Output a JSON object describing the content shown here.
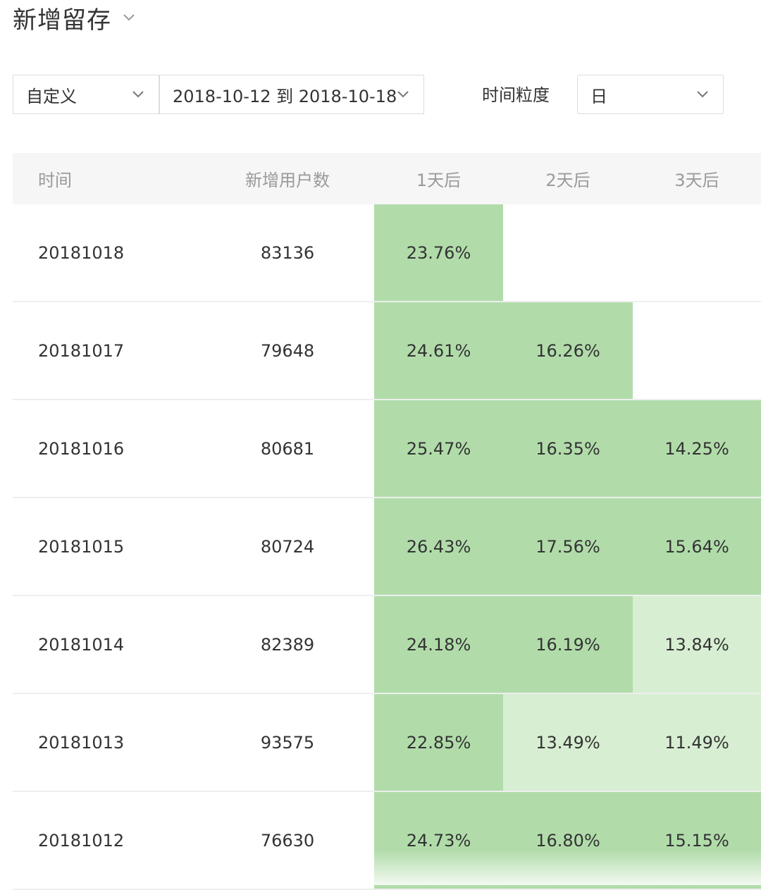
{
  "page": {
    "title": "新增留存"
  },
  "filters": {
    "range_mode": "自定义",
    "date_range": "2018-10-12 到 2018-10-18",
    "granularity_label": "时间粒度",
    "granularity_value": "日"
  },
  "colors": {
    "strong": "#b1dcaa",
    "light": "#d7eed2",
    "empty": "#ffffff"
  },
  "table": {
    "headers": {
      "time": "时间",
      "new_users": "新增用户数",
      "d1": "1天后",
      "d2": "2天后",
      "d3": "3天后"
    },
    "rows": [
      {
        "date": "20181018",
        "users": "83136",
        "d1": "23.76%",
        "d2": "",
        "d3": "",
        "shade": [
          "strong",
          "empty",
          "empty"
        ]
      },
      {
        "date": "20181017",
        "users": "79648",
        "d1": "24.61%",
        "d2": "16.26%",
        "d3": "",
        "shade": [
          "strong",
          "strong",
          "empty"
        ]
      },
      {
        "date": "20181016",
        "users": "80681",
        "d1": "25.47%",
        "d2": "16.35%",
        "d3": "14.25%",
        "shade": [
          "strong",
          "strong",
          "strong"
        ]
      },
      {
        "date": "20181015",
        "users": "80724",
        "d1": "26.43%",
        "d2": "17.56%",
        "d3": "15.64%",
        "shade": [
          "strong",
          "strong",
          "strong"
        ]
      },
      {
        "date": "20181014",
        "users": "82389",
        "d1": "24.18%",
        "d2": "16.19%",
        "d3": "13.84%",
        "shade": [
          "strong",
          "strong",
          "light"
        ]
      },
      {
        "date": "20181013",
        "users": "93575",
        "d1": "22.85%",
        "d2": "13.49%",
        "d3": "11.49%",
        "shade": [
          "strong",
          "light",
          "light"
        ]
      },
      {
        "date": "20181012",
        "users": "76630",
        "d1": "24.73%",
        "d2": "16.80%",
        "d3": "15.15%",
        "shade": [
          "strong",
          "strong",
          "strong"
        ]
      }
    ]
  }
}
